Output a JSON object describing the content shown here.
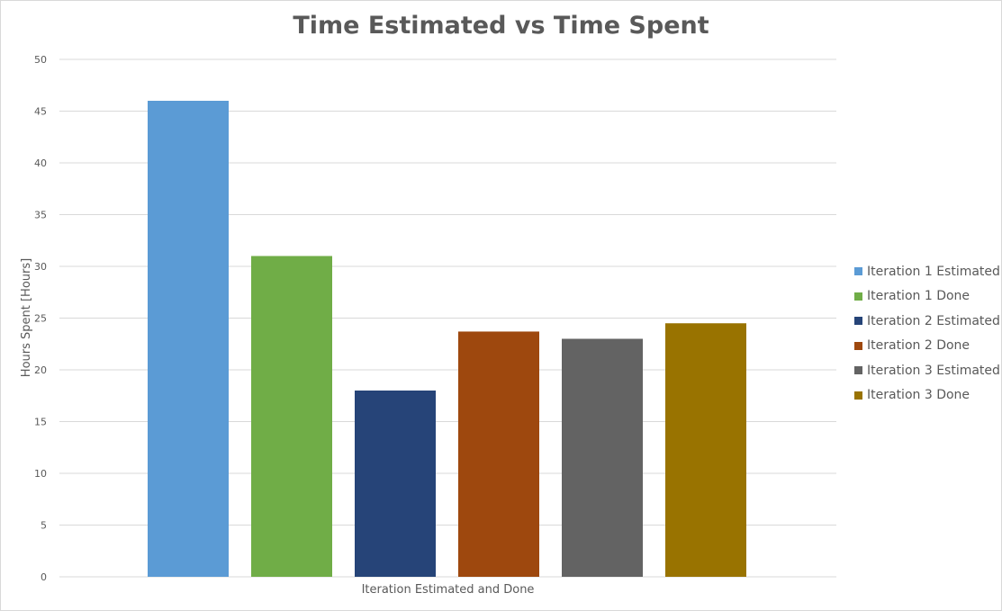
{
  "chart_data": {
    "type": "bar",
    "title": "Time Estimated vs Time Spent",
    "xlabel": "Iteration Estimated and Done",
    "ylabel": "Hours Spent [Hours]",
    "ylim": [
      0,
      50
    ],
    "yticks": [
      0,
      5,
      10,
      15,
      20,
      25,
      30,
      35,
      40,
      45,
      50
    ],
    "grid": true,
    "legend_position": "right",
    "categories": [
      ""
    ],
    "series": [
      {
        "name": "Iteration 1 Estimated",
        "values": [
          46
        ],
        "color": "#5b9bd5"
      },
      {
        "name": "Iteration 1 Done",
        "values": [
          31
        ],
        "color": "#70ad47"
      },
      {
        "name": "Iteration 2 Estimated",
        "values": [
          18
        ],
        "color": "#264478"
      },
      {
        "name": "Iteration 2 Done",
        "values": [
          23.7
        ],
        "color": "#9e480e"
      },
      {
        "name": "Iteration 3 Estimated",
        "values": [
          23
        ],
        "color": "#636363"
      },
      {
        "name": "Iteration 3 Done",
        "values": [
          24.5
        ],
        "color": "#997300"
      }
    ]
  }
}
